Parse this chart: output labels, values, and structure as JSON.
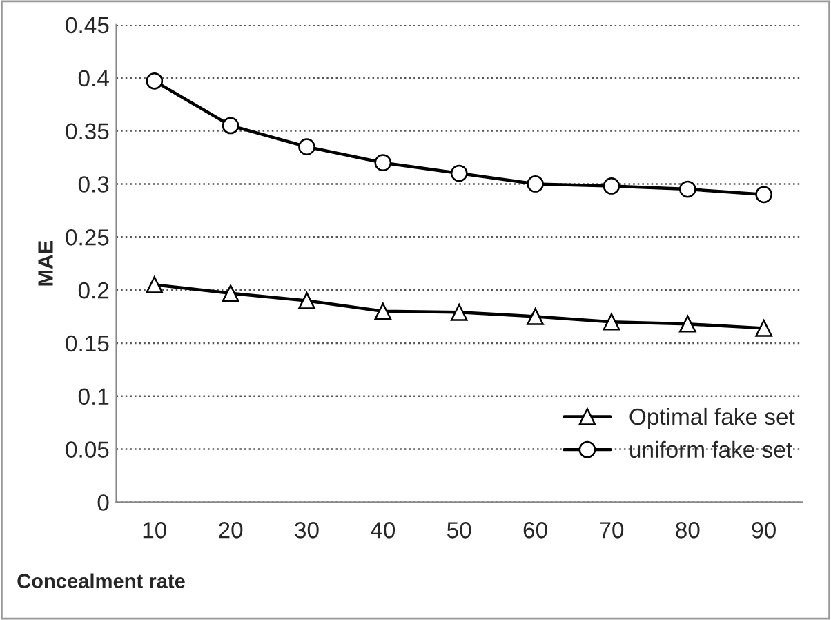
{
  "chart_data": {
    "type": "line",
    "xlabel": "Concealment rate",
    "ylabel": "MAE",
    "categories": [
      "10",
      "20",
      "30",
      "40",
      "50",
      "60",
      "70",
      "80",
      "90"
    ],
    "series": [
      {
        "name": "Optimal fake set",
        "color": "#000000",
        "marker": "triangle",
        "values": [
          0.205,
          0.197,
          0.19,
          0.18,
          0.179,
          0.175,
          0.17,
          0.168,
          0.164
        ]
      },
      {
        "name": "uniform fake set",
        "color": "#000000",
        "marker": "circle",
        "values": [
          0.397,
          0.355,
          0.335,
          0.32,
          0.31,
          0.3,
          0.298,
          0.295,
          0.29
        ]
      }
    ],
    "ylim": [
      0,
      0.45
    ],
    "yticks": [
      0,
      0.05,
      0.1,
      0.15,
      0.2,
      0.25,
      0.3,
      0.35,
      0.4,
      0.45
    ],
    "grid": "y",
    "legend": "bottom right",
    "line_style": "solid"
  }
}
